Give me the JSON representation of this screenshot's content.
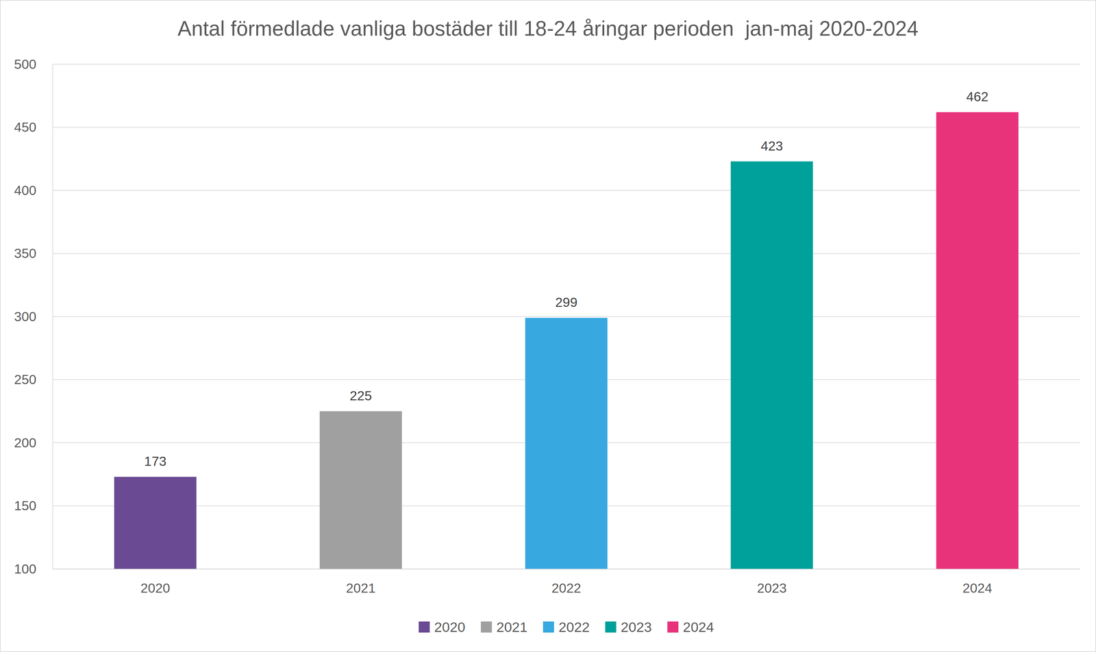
{
  "chart_data": {
    "type": "bar",
    "title": "Antal förmedlade vanliga bostäder till 18-24 åringar perioden  jan-maj 2020-2024",
    "categories": [
      "2020",
      "2021",
      "2022",
      "2023",
      "2024"
    ],
    "values": [
      173,
      225,
      299,
      423,
      462
    ],
    "colors": [
      "#6a4a93",
      "#a0a0a0",
      "#38a9e0",
      "#00a19a",
      "#e8337a"
    ],
    "ylim": [
      100,
      500
    ],
    "yticks": [
      100,
      150,
      200,
      250,
      300,
      350,
      400,
      450,
      500
    ],
    "grid": true,
    "data_labels": true,
    "legend": "bottom"
  }
}
